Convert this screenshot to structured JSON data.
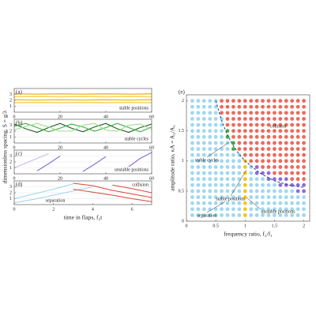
{
  "chart_data": [
    {
      "type": "line",
      "panel_label": "(a)",
      "ylabel": "dimensionless spacing, S = g/λ",
      "annotations": [
        "stable positions"
      ],
      "x": [
        0,
        10,
        20,
        30,
        40,
        50,
        60
      ],
      "xlim": [
        0,
        60
      ],
      "xticks": [
        0,
        20,
        40,
        60
      ],
      "ylim": [
        0,
        4
      ],
      "yticks": [
        1,
        2,
        3
      ],
      "series": [
        {
          "color": "#f2c12e",
          "values": [
            3.1,
            3.05,
            3.1,
            3.05,
            3.1,
            3.05,
            3.1
          ]
        },
        {
          "color": "#f5d35c",
          "values": [
            2.6,
            2.65,
            2.6,
            2.65,
            2.6,
            2.65,
            2.6
          ]
        },
        {
          "color": "#f2c12e",
          "values": [
            2.1,
            2.05,
            2.1,
            2.05,
            2.1,
            2.05,
            2.1
          ]
        },
        {
          "color": "#f5d35c",
          "values": [
            1.6,
            1.65,
            1.6,
            1.65,
            1.6,
            1.65,
            1.6
          ]
        }
      ]
    },
    {
      "type": "line",
      "panel_label": "(b)",
      "annotations": [
        "stable cycles"
      ],
      "x": [
        0,
        5,
        10,
        15,
        20,
        25,
        30,
        35,
        40,
        45,
        50,
        55,
        60
      ],
      "xlim": [
        0,
        60
      ],
      "xticks": [
        0,
        20,
        40,
        60
      ],
      "ylim": [
        0,
        4
      ],
      "yticks": [
        1,
        2,
        3
      ],
      "series": [
        {
          "color": "#1f5a1f",
          "values": [
            3.2,
            2.4,
            1.8,
            2.6,
            3.3,
            2.5,
            1.9,
            2.7,
            3.3,
            2.4,
            1.8,
            2.6,
            3.2
          ]
        },
        {
          "color": "#3cb043",
          "values": [
            2.8,
            3.3,
            2.6,
            1.9,
            2.5,
            3.2,
            2.7,
            2.0,
            2.6,
            3.3,
            2.6,
            1.9,
            2.7
          ]
        },
        {
          "color": "#9be08a",
          "values": [
            2.2,
            2.8,
            3.3,
            2.7,
            2.0,
            2.0,
            3.0,
            3.3,
            2.2,
            2.0,
            3.0,
            3.2,
            2.3
          ]
        }
      ]
    },
    {
      "type": "line",
      "panel_label": "(c)",
      "annotations": [
        "unstable positions"
      ],
      "x": [
        0,
        5,
        10,
        15,
        20,
        25,
        30,
        35,
        40,
        45,
        50,
        55,
        60
      ],
      "xlim": [
        0,
        60
      ],
      "xticks": [
        0,
        20,
        40,
        60
      ],
      "ylim": [
        0,
        4
      ],
      "yticks": [
        1,
        2,
        3
      ],
      "series": [
        {
          "color": "#c9b8f0",
          "values": [
            1.0,
            1.8,
            2.6,
            3.4,
            null,
            null,
            null,
            null,
            null,
            null,
            null,
            null,
            null
          ]
        },
        {
          "color": "#8a6cd6",
          "values": [
            null,
            null,
            0.5,
            1.7,
            3.0,
            null,
            0.4,
            1.6,
            2.9,
            null,
            1.2,
            2.6,
            3.6
          ]
        }
      ]
    },
    {
      "type": "line",
      "panel_label": "(d)",
      "xlabel": "time in flaps, f₂t",
      "annotations": [
        "collision",
        "separation"
      ],
      "x": [
        0,
        1,
        2,
        3,
        4,
        5,
        6,
        7
      ],
      "xlim": [
        0,
        7
      ],
      "xticks": [
        0,
        2,
        4,
        6
      ],
      "ylim": [
        0,
        4
      ],
      "yticks": [
        1,
        2,
        3
      ],
      "series": [
        {
          "color": "#9fd3ee",
          "values": [
            1.0,
            1.8,
            2.6,
            3.5,
            null,
            null,
            null,
            null
          ]
        },
        {
          "color": "#9fd3ee",
          "values": [
            0.3,
            0.9,
            1.6,
            2.3,
            3.0,
            null,
            null,
            null
          ]
        },
        {
          "color": "#d9483b",
          "values": [
            null,
            null,
            null,
            3.6,
            3.2,
            2.4,
            1.8,
            1.2
          ]
        },
        {
          "color": "#d9483b",
          "values": [
            null,
            null,
            null,
            2.6,
            2.1,
            1.6,
            1.0,
            0.5
          ]
        },
        {
          "color": "#d9483b",
          "values": [
            null,
            null,
            null,
            null,
            null,
            3.3,
            2.7,
            2.0
          ]
        }
      ]
    },
    {
      "type": "scatter",
      "panel_label": "(e)",
      "xlabel": "frequency ratio, f₂/f₁",
      "ylabel": "amplitude ratio, κA = A₂/A₁",
      "annotations": [
        "collision",
        "stable cycles",
        "stable positions",
        "unstable positions",
        "separation"
      ],
      "xlim": [
        0,
        2.1
      ],
      "ylim": [
        0,
        2.1
      ],
      "xticks": [
        0,
        0.5,
        1,
        1.5,
        2
      ],
      "yticks": [
        0,
        0.5,
        1,
        1.5,
        2
      ],
      "state_colors": [
        "#9fd8ef",
        "#ec6a5c",
        "#8e6bd8",
        "#f5c518",
        "#3fae3f"
      ],
      "x": [
        0.1,
        0.2,
        0.3,
        0.4,
        0.5,
        0.6,
        0.7,
        0.8,
        0.9,
        1.0,
        1.1,
        1.2,
        1.3,
        1.4,
        1.5,
        1.6,
        1.7,
        1.8,
        1.9,
        2.0
      ],
      "y": [
        0.1,
        0.2,
        0.3,
        0.4,
        0.5,
        0.6,
        0.7,
        0.8,
        0.9,
        1.0,
        1.1,
        1.2,
        1.3,
        1.4,
        1.5,
        1.6,
        1.7,
        1.8,
        1.9,
        2.0
      ],
      "states": [
        [
          0,
          0,
          0,
          0,
          0,
          0,
          0,
          0,
          0,
          3,
          0,
          0,
          0,
          0,
          0,
          0,
          0,
          0,
          0,
          0
        ],
        [
          0,
          0,
          0,
          0,
          0,
          0,
          0,
          0,
          0,
          3,
          0,
          0,
          0,
          0,
          0,
          0,
          0,
          0,
          0,
          0
        ],
        [
          0,
          0,
          0,
          0,
          0,
          0,
          0,
          0,
          0,
          3,
          0,
          0,
          0,
          0,
          0,
          0,
          0,
          0,
          0,
          0
        ],
        [
          0,
          0,
          0,
          0,
          0,
          0,
          0,
          0,
          0,
          3,
          0,
          0,
          0,
          0,
          0,
          0,
          0,
          0,
          0,
          0
        ],
        [
          0,
          0,
          0,
          0,
          0,
          0,
          0,
          0,
          0,
          3,
          0,
          0,
          0,
          0,
          0,
          0,
          0,
          0,
          2,
          2
        ],
        [
          0,
          0,
          0,
          0,
          0,
          0,
          0,
          0,
          0,
          3,
          0,
          0,
          0,
          0,
          0,
          2,
          2,
          2,
          2,
          2
        ],
        [
          0,
          0,
          0,
          0,
          0,
          0,
          0,
          0,
          0,
          3,
          0,
          0,
          0,
          2,
          2,
          2,
          2,
          1,
          1,
          1
        ],
        [
          0,
          0,
          0,
          0,
          0,
          0,
          0,
          0,
          0,
          3,
          0,
          2,
          2,
          2,
          1,
          1,
          1,
          1,
          1,
          1
        ],
        [
          0,
          0,
          0,
          0,
          0,
          0,
          0,
          0,
          0,
          3,
          0,
          2,
          1,
          1,
          1,
          1,
          1,
          1,
          1,
          1
        ],
        [
          0,
          0,
          0,
          0,
          0,
          0,
          0,
          0,
          0,
          3,
          1,
          1,
          1,
          1,
          1,
          1,
          1,
          1,
          1,
          1
        ],
        [
          0,
          0,
          0,
          0,
          0,
          0,
          0,
          0,
          0,
          1,
          1,
          1,
          1,
          1,
          1,
          1,
          1,
          1,
          1,
          1
        ],
        [
          0,
          0,
          0,
          0,
          0,
          0,
          0,
          4,
          1,
          1,
          1,
          1,
          1,
          1,
          1,
          1,
          1,
          1,
          1,
          1
        ],
        [
          0,
          0,
          0,
          0,
          0,
          0,
          0,
          4,
          1,
          1,
          1,
          1,
          1,
          1,
          1,
          1,
          1,
          1,
          1,
          1
        ],
        [
          0,
          0,
          0,
          0,
          0,
          0,
          4,
          1,
          1,
          1,
          1,
          1,
          1,
          1,
          1,
          1,
          1,
          1,
          1,
          1
        ],
        [
          0,
          0,
          0,
          0,
          0,
          0,
          4,
          1,
          1,
          1,
          1,
          1,
          1,
          1,
          1,
          1,
          1,
          1,
          1,
          1
        ],
        [
          0,
          0,
          0,
          0,
          0,
          0,
          1,
          1,
          1,
          1,
          1,
          1,
          1,
          1,
          1,
          1,
          1,
          1,
          1,
          1
        ],
        [
          0,
          0,
          0,
          0,
          0,
          0,
          1,
          1,
          1,
          1,
          1,
          1,
          1,
          1,
          1,
          1,
          1,
          1,
          1,
          1
        ],
        [
          0,
          0,
          0,
          0,
          0,
          1,
          1,
          1,
          1,
          1,
          1,
          1,
          1,
          1,
          1,
          1,
          1,
          1,
          1,
          1
        ],
        [
          0,
          0,
          0,
          0,
          0,
          1,
          1,
          1,
          1,
          1,
          1,
          1,
          1,
          1,
          1,
          1,
          1,
          1,
          1,
          1
        ],
        [
          0,
          0,
          0,
          0,
          0,
          1,
          1,
          1,
          1,
          1,
          1,
          1,
          1,
          1,
          1,
          1,
          1,
          1,
          1,
          1
        ]
      ],
      "boundary": {
        "color": "#2a3f8f",
        "x": [
          0.5,
          0.6,
          0.7,
          0.8,
          0.9,
          1.0,
          1.25,
          1.5,
          1.75,
          2.0
        ],
        "y": [
          2.0,
          1.67,
          1.43,
          1.25,
          1.11,
          1.0,
          0.8,
          0.67,
          0.6,
          0.56
        ]
      }
    }
  ]
}
